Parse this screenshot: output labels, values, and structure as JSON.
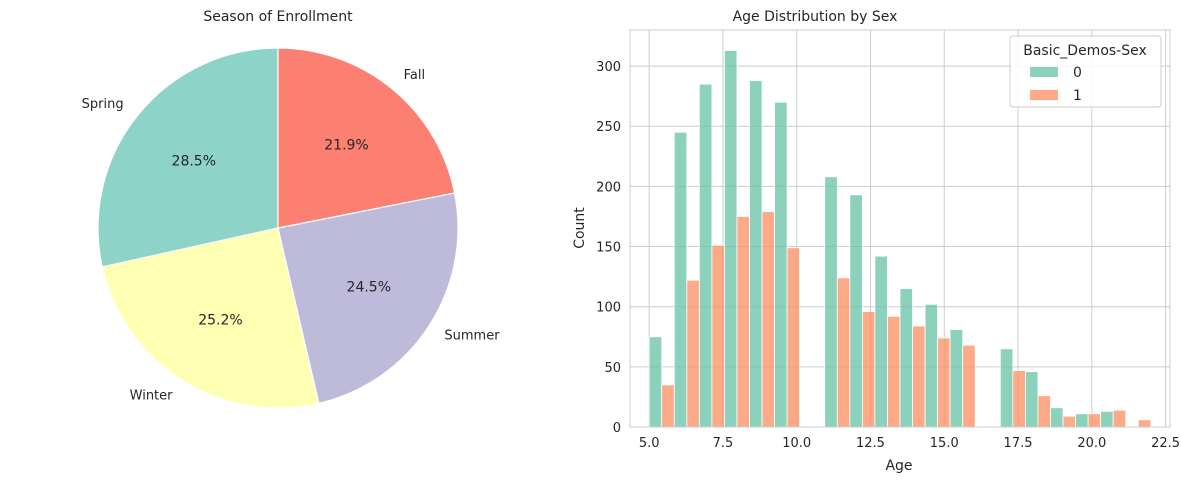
{
  "chart_data": [
    {
      "type": "pie",
      "title": "Season of Enrollment",
      "labels": [
        "Spring",
        "Winter",
        "Summer",
        "Fall"
      ],
      "values": [
        28.5,
        25.2,
        24.5,
        21.9
      ],
      "pct_labels": [
        "28.5%",
        "25.2%",
        "24.5%",
        "21.9%"
      ],
      "colors": [
        "#8dd3c7",
        "#ffffb3",
        "#bebada",
        "#fb8072"
      ],
      "start_angle": 90,
      "direction": "counterclockwise"
    },
    {
      "type": "bar",
      "subtype": "histogram-dodge",
      "title": "Age Distribution by Sex",
      "xlabel": "Age",
      "ylabel": "Count",
      "xlim": [
        4.35,
        22.65
      ],
      "ylim": [
        0,
        330
      ],
      "xticks": [
        5.0,
        7.5,
        10.0,
        12.5,
        15.0,
        17.5,
        20.0,
        22.5
      ],
      "xtick_labels": [
        "5.0",
        "7.5",
        "10.0",
        "12.5",
        "15.0",
        "17.5",
        "20.0",
        "22.5"
      ],
      "yticks": [
        0,
        50,
        100,
        150,
        200,
        250,
        300
      ],
      "ytick_labels": [
        "0",
        "50",
        "100",
        "150",
        "200",
        "250",
        "300"
      ],
      "grid": true,
      "legend": {
        "title": "Basic_Demos-Sex",
        "placement": "top-right"
      },
      "bin_width": 0.85,
      "bin_starts": [
        5.0,
        5.85,
        6.7,
        7.55,
        8.4,
        9.25,
        10.1,
        10.95,
        11.8,
        12.65,
        13.5,
        14.35,
        15.2,
        16.05,
        16.9,
        17.75,
        18.6,
        19.45,
        20.3,
        21.15
      ],
      "series": [
        {
          "name": "0",
          "color": "#66c2a5",
          "values": [
            75,
            245,
            285,
            313,
            288,
            270,
            0,
            208,
            193,
            142,
            115,
            102,
            81,
            0,
            65,
            46,
            16,
            11,
            13,
            0
          ]
        },
        {
          "name": "1",
          "color": "#fc8d62",
          "values": [
            35,
            122,
            151,
            175,
            179,
            149,
            0,
            124,
            96,
            92,
            84,
            74,
            68,
            0,
            47,
            26,
            9,
            11,
            14,
            6
          ]
        }
      ]
    }
  ]
}
